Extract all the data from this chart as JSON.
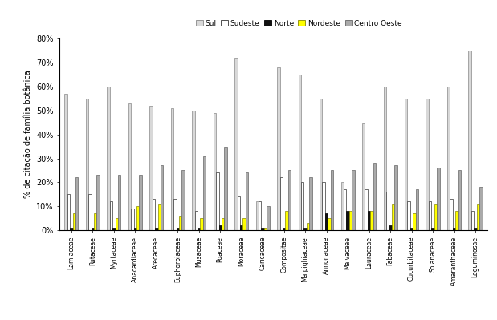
{
  "categories": [
    "Lamiaceae",
    "Rutaceae",
    "Myrtaceae",
    "Anacardiaceae",
    "Arecaceae",
    "Euphorbiaceae",
    "Musaceae",
    "Poaceae",
    "Moraceae",
    "Caricaceae",
    "Compositae",
    "Malpighiaceae",
    "Annonaceae",
    "Malvaceae",
    "Lauraceae",
    "Fabaceae",
    "Cucurbitaceae",
    "Solanaceae",
    "Amaranthaceae",
    "Leguminosae"
  ],
  "series": {
    "Sul": [
      57,
      55,
      60,
      53,
      52,
      51,
      50,
      49,
      72,
      12,
      68,
      65,
      55,
      20,
      45,
      60,
      55,
      55,
      60,
      75
    ],
    "Sudeste": [
      15,
      15,
      12,
      9,
      13,
      13,
      8,
      24,
      14,
      12,
      22,
      20,
      20,
      17,
      17,
      16,
      12,
      12,
      13,
      8
    ],
    "Norte": [
      1,
      1,
      1,
      1,
      1,
      1,
      1,
      2,
      2,
      1,
      1,
      1,
      7,
      8,
      8,
      2,
      1,
      1,
      1,
      1
    ],
    "Nordeste": [
      7,
      7,
      5,
      10,
      11,
      6,
      5,
      5,
      5,
      1,
      8,
      3,
      5,
      8,
      8,
      11,
      7,
      11,
      8,
      11
    ],
    "Centro Oeste": [
      22,
      23,
      23,
      23,
      27,
      25,
      31,
      35,
      24,
      10,
      25,
      22,
      25,
      25,
      28,
      27,
      17,
      26,
      25,
      18
    ]
  },
  "colors": {
    "Sul": "#d8d8d8",
    "Sudeste": "#ffffff",
    "Norte": "#111111",
    "Nordeste": "#ffff00",
    "Centro Oeste": "#aaaaaa"
  },
  "edgecolors": {
    "Sul": "#888888",
    "Sudeste": "#333333",
    "Norte": "#000000",
    "Nordeste": "#888800",
    "Centro Oeste": "#666666"
  },
  "ylabel": "% de citação de família botânica",
  "ylim": [
    0,
    80
  ],
  "yticks": [
    0,
    10,
    20,
    30,
    40,
    50,
    60,
    70,
    80
  ],
  "ytick_labels": [
    "0%",
    "10%",
    "20%",
    "30%",
    "40%",
    "50%",
    "60%",
    "70%",
    "80%"
  ]
}
